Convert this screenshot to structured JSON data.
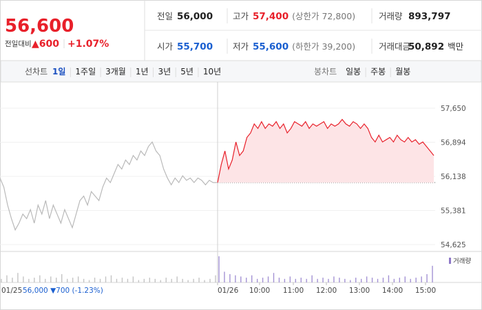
{
  "header": {
    "price": "56,600",
    "change_label": "전일대비",
    "change": "▲600",
    "change_pct": "+1.07%",
    "price_color": "#e8202a",
    "stats": [
      {
        "label": "전일",
        "value": "56,000",
        "color": "#222222"
      },
      {
        "label": "고가",
        "value": "57,400",
        "note": "(상한가 72,800)",
        "color": "#e8202a"
      },
      {
        "label": "거래량",
        "value": "893,797",
        "color": "#222222"
      },
      {
        "label": "시가",
        "value": "55,700",
        "color": "#1a5fd0"
      },
      {
        "label": "저가",
        "value": "55,600",
        "note": "(하한가 39,200)",
        "color": "#1a5fd0"
      },
      {
        "label": "거래대금",
        "value": "50,892",
        "note": "백만",
        "color": "#222222"
      }
    ]
  },
  "tabs": {
    "line_label": "선차트",
    "line_periods": [
      "1일",
      "1주일",
      "3개월",
      "1년",
      "3년",
      "5년",
      "10년"
    ],
    "selected": 0,
    "candle_label": "봉차트",
    "candle_periods": [
      "일봉",
      "주봉",
      "월봉"
    ]
  },
  "chart_data": {
    "type": "line",
    "ylim": [
      54625,
      57650
    ],
    "yticks": [
      {
        "value": 57650,
        "label": "57,650"
      },
      {
        "value": 56894,
        "label": "56,894"
      },
      {
        "value": 56138,
        "label": "56,138"
      },
      {
        "value": 55381,
        "label": "55,381"
      },
      {
        "value": 54625,
        "label": "54,625"
      }
    ],
    "reference": 56000,
    "series": [
      {
        "color": "#b9b9b9",
        "values": [
          56100,
          55900,
          55500,
          55200,
          54950,
          55100,
          55300,
          55200,
          55400,
          55100,
          55500,
          55300,
          55600,
          55200,
          55500,
          55300,
          55100,
          55400,
          55200,
          55000,
          55300,
          55600,
          55700,
          55500,
          55800,
          55700,
          55600,
          55900,
          56100,
          56000,
          56200,
          56400,
          56300,
          56500,
          56400,
          56600,
          56500,
          56700,
          56600,
          56800,
          56900,
          56700,
          56600,
          56300,
          56100,
          55950,
          56100,
          56000,
          56150,
          56050,
          56100,
          56000,
          56100,
          56050,
          55950,
          56050,
          56000,
          56000
        ]
      },
      {
        "color": "#e8202a",
        "fill": "#fde4e6",
        "values": [
          56000,
          56400,
          56700,
          56300,
          56500,
          56900,
          56600,
          56700,
          57000,
          57100,
          57300,
          57200,
          57350,
          57200,
          57300,
          57250,
          57350,
          57200,
          57300,
          57100,
          57200,
          57350,
          57300,
          57250,
          57350,
          57200,
          57300,
          57250,
          57300,
          57350,
          57200,
          57300,
          57250,
          57300,
          57400,
          57300,
          57250,
          57350,
          57300,
          57200,
          57300,
          57200,
          57000,
          56900,
          57050,
          56900,
          56950,
          57000,
          56900,
          57050,
          56950,
          56900,
          57000,
          56900,
          56950,
          56850,
          56900,
          56800,
          56700,
          56600
        ]
      }
    ],
    "volume": {
      "legend": "거래량",
      "legend_color": "#8e78c8",
      "series": [
        {
          "color": "#c4c4c4",
          "values": [
            3,
            6,
            4,
            8,
            5,
            3,
            4,
            6,
            3,
            5,
            4,
            7,
            3,
            4,
            5,
            3,
            2,
            4,
            3,
            5,
            6,
            3,
            4,
            3,
            5,
            2,
            3,
            4,
            3,
            2,
            4,
            3,
            5,
            3,
            2,
            3,
            4,
            2,
            3,
            6
          ]
        },
        {
          "color": "#a392d4",
          "values": [
            22,
            9,
            7,
            6,
            5,
            4,
            6,
            3,
            4,
            5,
            8,
            4,
            3,
            5,
            3,
            4,
            3,
            6,
            3,
            4,
            3,
            5,
            4,
            3,
            2,
            4,
            3,
            5,
            4,
            3,
            4,
            6,
            3,
            4,
            5,
            3,
            4,
            5,
            7,
            14
          ]
        }
      ]
    },
    "xlabels": [
      "01/25",
      "56,000 ▼700 (-1.23%)",
      "01/26",
      "10:00",
      "11:00",
      "12:00",
      "13:00",
      "14:00",
      "15:00"
    ],
    "xlabel_colors": [
      "#444444",
      "#1a5fd0"
    ]
  }
}
